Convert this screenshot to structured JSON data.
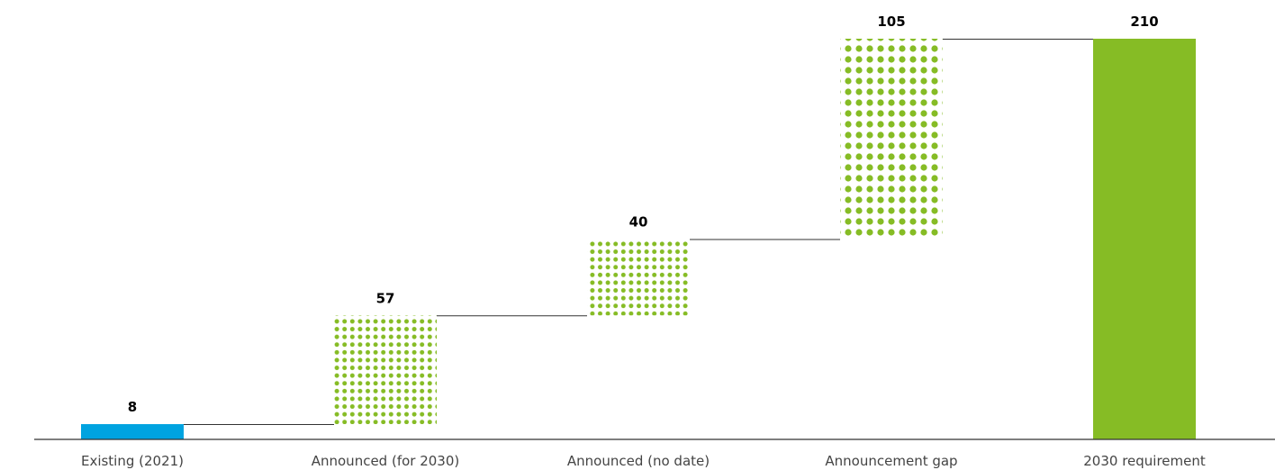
{
  "chart_data": {
    "type": "bar",
    "subtype": "waterfall",
    "title": "",
    "xlabel": "",
    "ylabel": "",
    "categories": [
      "Existing (2021)",
      "Announced (for 2030)",
      "Announced (no date)",
      "Announcement gap",
      "2030 requirement"
    ],
    "values": [
      8,
      57,
      40,
      105,
      210
    ],
    "bar_roles": [
      "start",
      "increment",
      "increment",
      "increment",
      "total"
    ],
    "bar_styles": [
      "solid",
      "dotted",
      "dotted",
      "dotted",
      "solid"
    ],
    "ylim": [
      0,
      210
    ],
    "grid": false,
    "legend": "none",
    "colors": {
      "existing": "#00A3E0",
      "dots": "#86BC25",
      "total": "#86BC25",
      "connector": "#333333",
      "axis": "#333333"
    }
  }
}
